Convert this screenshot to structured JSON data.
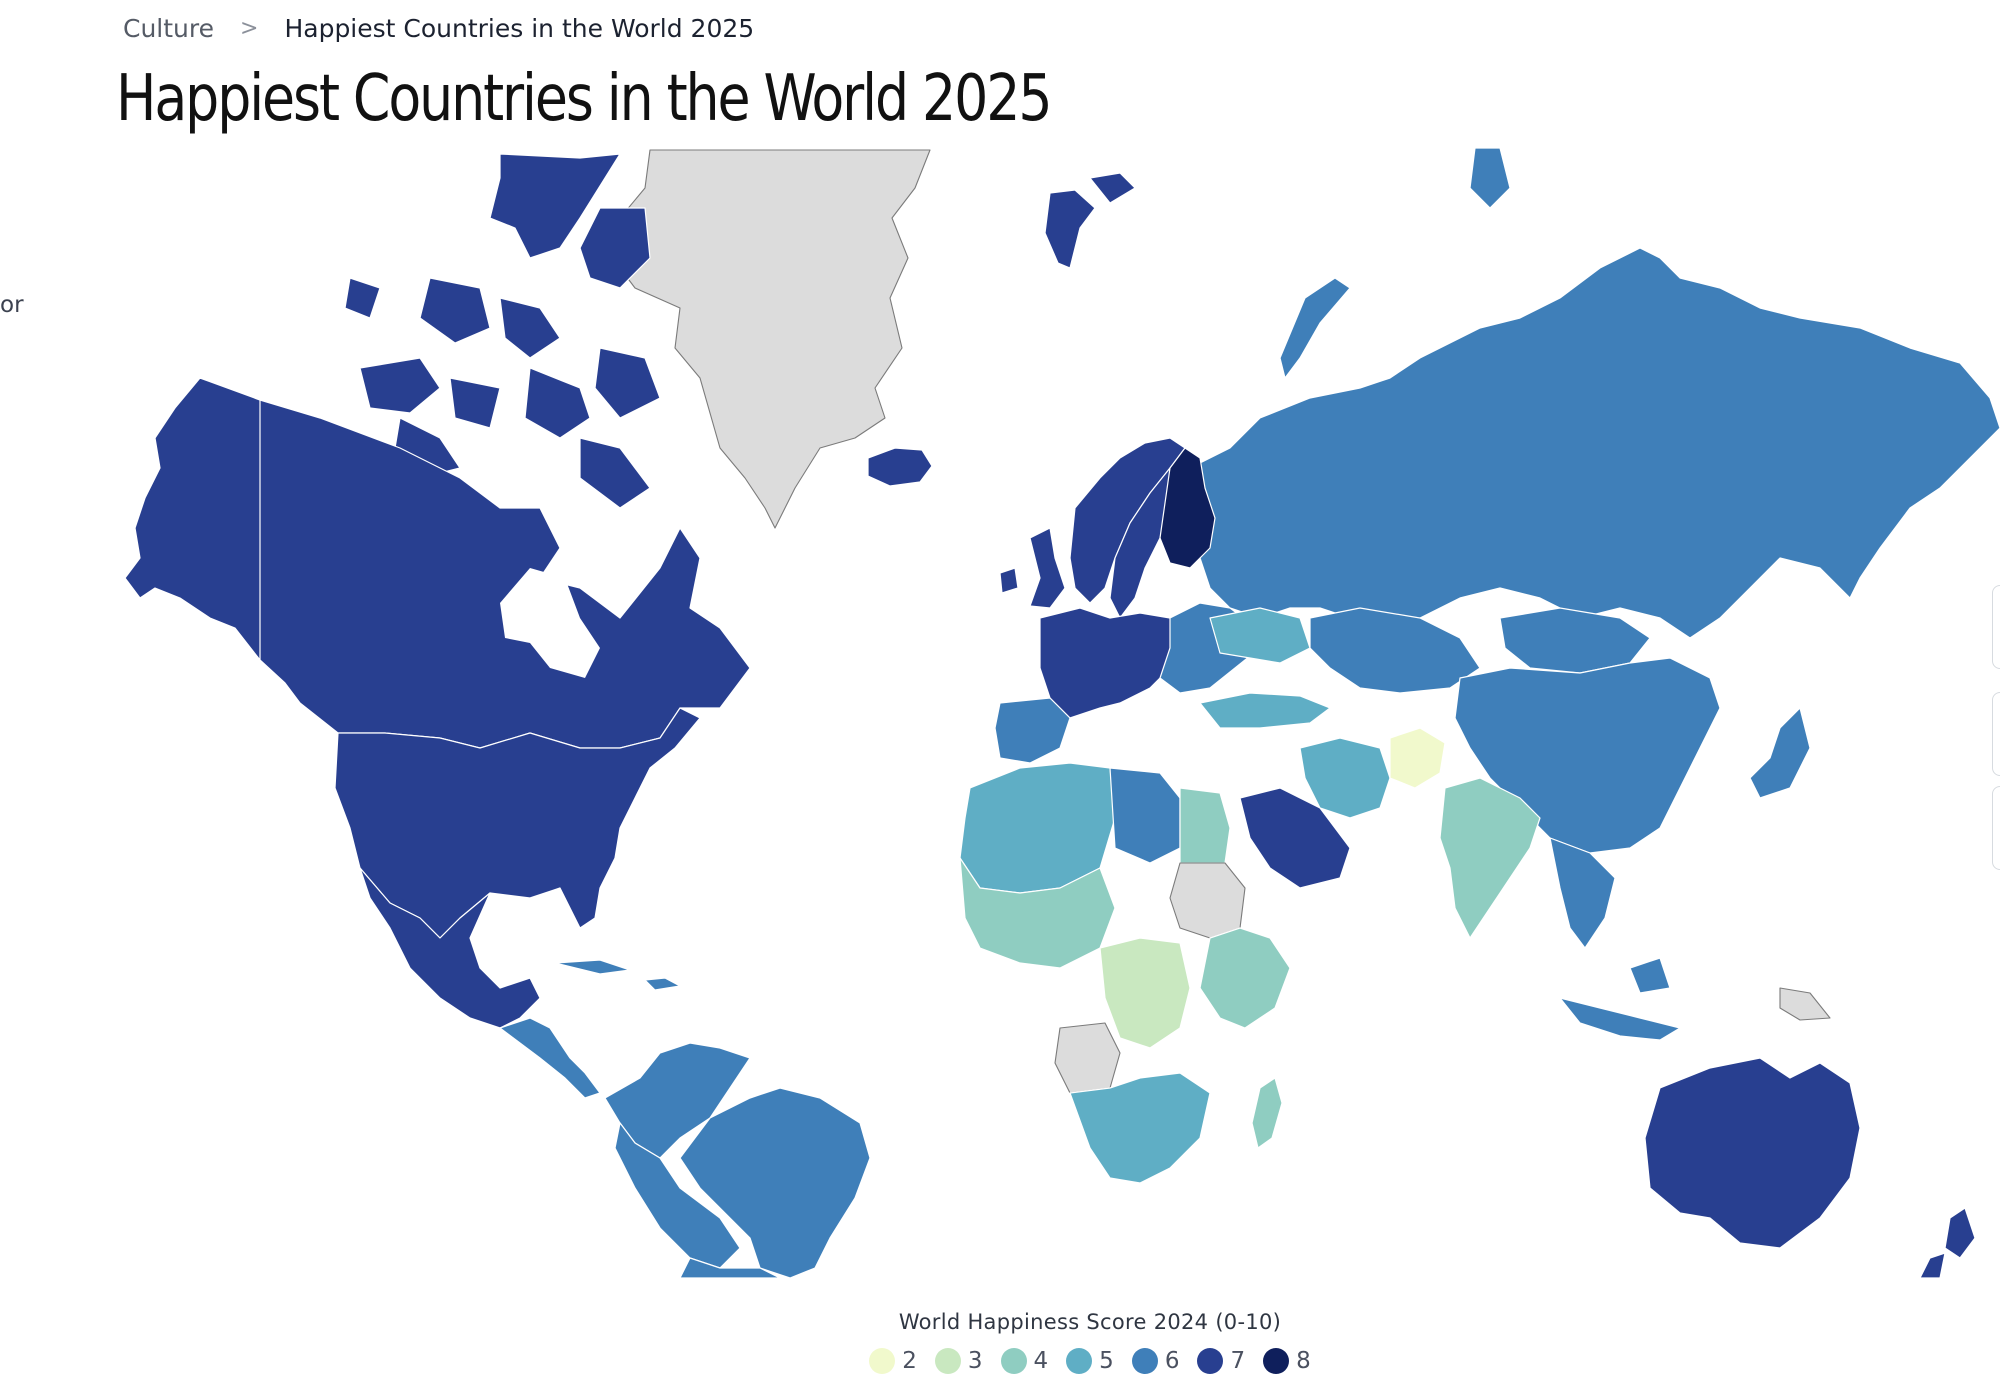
{
  "breadcrumb": {
    "root": "Culture",
    "separator": ">",
    "current": "Happiest Countries in the World 2025"
  },
  "page_title": "Happiest Countries in the World 2025",
  "side_fragment": "or",
  "legend": {
    "title": "World Happiness Score 2024 (0-10)",
    "items": [
      {
        "label": "2",
        "color": "#f1f9cc"
      },
      {
        "label": "3",
        "color": "#c9e8c0"
      },
      {
        "label": "4",
        "color": "#8fcdc1"
      },
      {
        "label": "5",
        "color": "#5faec5"
      },
      {
        "label": "6",
        "color": "#3f7fb9"
      },
      {
        "label": "7",
        "color": "#283f90"
      },
      {
        "label": "8",
        "color": "#0f1f5c"
      }
    ]
  },
  "map": {
    "no_data_color": "#dcdcdc",
    "ocean_color": "#ffffff",
    "regions": [
      {
        "name": "Canada",
        "score_band": 7
      },
      {
        "name": "United States",
        "score_band": 7
      },
      {
        "name": "Mexico",
        "score_band": 7
      },
      {
        "name": "Greenland",
        "score_band": null
      },
      {
        "name": "Iceland",
        "score_band": 7
      },
      {
        "name": "Brazil",
        "score_band": 6
      },
      {
        "name": "Argentina",
        "score_band": 6
      },
      {
        "name": "Russia",
        "score_band": 6
      },
      {
        "name": "China",
        "score_band": 6
      },
      {
        "name": "Kazakhstan",
        "score_band": 6
      },
      {
        "name": "Mongolia",
        "score_band": 6
      },
      {
        "name": "India",
        "score_band": 4
      },
      {
        "name": "Afghanistan",
        "score_band": 2
      },
      {
        "name": "Saudi Arabia",
        "score_band": 7
      },
      {
        "name": "Australia",
        "score_band": 7
      },
      {
        "name": "New Zealand",
        "score_band": 7
      },
      {
        "name": "Finland",
        "score_band": 8
      },
      {
        "name": "Sweden",
        "score_band": 7
      },
      {
        "name": "Norway",
        "score_band": 7
      },
      {
        "name": "DR Congo",
        "score_band": 3
      },
      {
        "name": "Egypt",
        "score_band": 4
      },
      {
        "name": "Libya",
        "score_band": 6
      },
      {
        "name": "South Africa",
        "score_band": 5
      },
      {
        "name": "Madagascar",
        "score_band": 4
      },
      {
        "name": "Sudan",
        "score_band": null
      },
      {
        "name": "Angola",
        "score_band": null
      },
      {
        "name": "Papua New Guinea",
        "score_band": null
      },
      {
        "name": "Svalbard",
        "score_band": 7
      }
    ]
  }
}
